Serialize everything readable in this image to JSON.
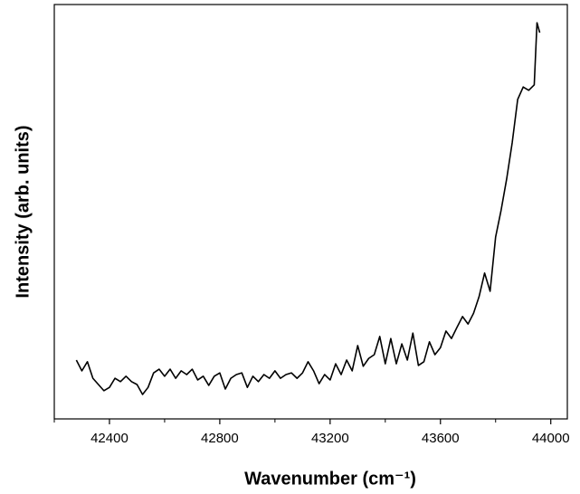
{
  "chart_data": {
    "type": "line",
    "x_label": "Wavenumber (cm⁻¹)",
    "y_label": "Intensity (arb. units)",
    "xlim": [
      42200,
      44060
    ],
    "ylim": [
      0,
      100
    ],
    "xticks": [
      42400,
      42800,
      43200,
      43600,
      44000
    ],
    "xminor_ticks": [
      42200,
      42600,
      43000,
      43400,
      43800
    ],
    "series": [
      {
        "color": "#000000",
        "x": [
          42280,
          42300,
          42320,
          42340,
          42360,
          42380,
          42400,
          42420,
          42440,
          42460,
          42480,
          42500,
          42520,
          42540,
          42560,
          42580,
          42600,
          42620,
          42640,
          42660,
          42680,
          42700,
          42720,
          42740,
          42760,
          42780,
          42800,
          42820,
          42840,
          42860,
          42880,
          42900,
          42920,
          42940,
          42960,
          42980,
          43000,
          43020,
          43040,
          43060,
          43080,
          43100,
          43120,
          43140,
          43160,
          43180,
          43200,
          43220,
          43240,
          43260,
          43280,
          43300,
          43320,
          43340,
          43360,
          43380,
          43400,
          43420,
          43440,
          43460,
          43480,
          43500,
          43520,
          43540,
          43560,
          43580,
          43600,
          43620,
          43640,
          43660,
          43680,
          43700,
          43720,
          43740,
          43760,
          43780,
          43800,
          43820,
          43840,
          43860,
          43880,
          43900,
          43920,
          43940,
          43950,
          43960
        ],
        "values": [
          14.2,
          11.6,
          13.8,
          9.8,
          8.3,
          6.8,
          7.6,
          9.8,
          9.0,
          10.3,
          9.0,
          8.3,
          5.9,
          7.6,
          11.1,
          12.0,
          10.3,
          12.0,
          9.8,
          11.6,
          10.7,
          12.0,
          9.4,
          10.3,
          8.1,
          10.3,
          11.1,
          7.2,
          9.8,
          10.7,
          11.1,
          7.6,
          10.3,
          9.0,
          10.7,
          9.8,
          11.6,
          9.8,
          10.7,
          11.1,
          9.8,
          11.1,
          13.8,
          11.6,
          8.5,
          10.7,
          9.4,
          13.3,
          10.7,
          14.2,
          11.6,
          17.7,
          12.7,
          14.6,
          15.5,
          19.9,
          13.3,
          19.4,
          13.3,
          18.1,
          14.2,
          20.7,
          12.9,
          13.8,
          18.6,
          15.5,
          17.2,
          21.2,
          19.4,
          22.1,
          24.7,
          22.9,
          25.5,
          29.5,
          35.2,
          30.8,
          43.9,
          50.4,
          57.9,
          66.6,
          77.1,
          80.1,
          79.3,
          80.6,
          95.6,
          93.2
        ]
      }
    ]
  }
}
